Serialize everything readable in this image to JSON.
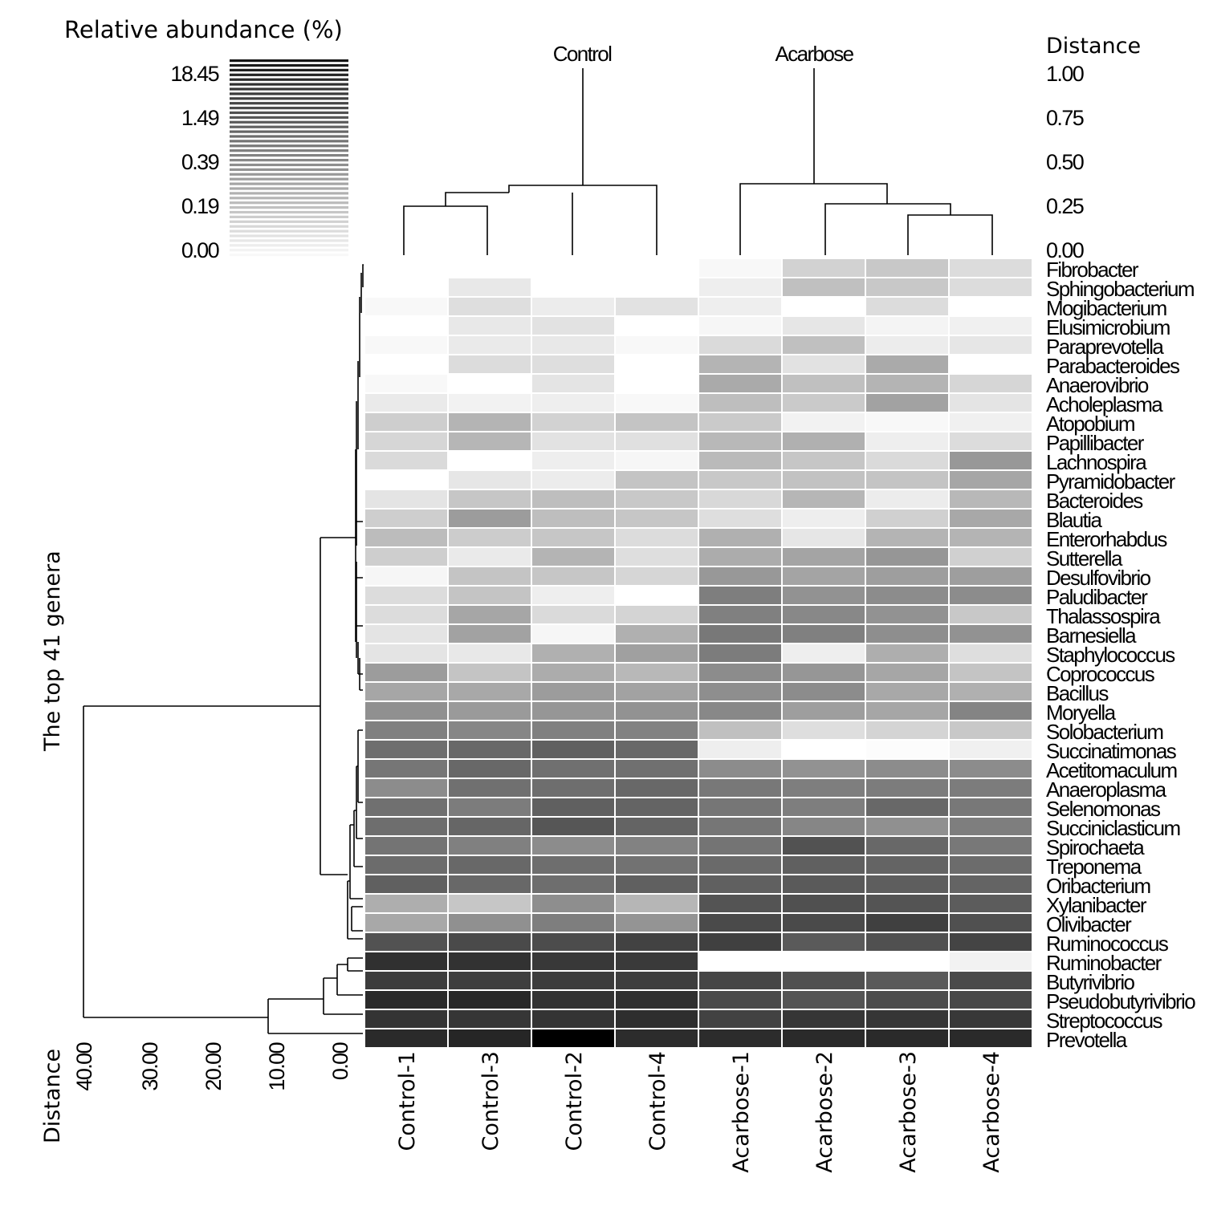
{
  "chart_data": {
    "type": "heatmap",
    "legend_title": "Relative abundance (%)",
    "legend_ticks": [
      "18.45",
      "1.49",
      "0.39",
      "0.19",
      "0.00"
    ],
    "group_labels": [
      "Control",
      "Acarbose"
    ],
    "col_distance_title": "Distance",
    "col_distance_ticks": [
      "1.00",
      "0.75",
      "0.50",
      "0.25",
      "0.00"
    ],
    "row_axis_title": "The top 41 genera",
    "row_distance_title": "Distance",
    "row_distance_ticks": [
      "40.00",
      "30.00",
      "20.00",
      "10.00",
      "0.00"
    ],
    "columns": [
      "Control-1",
      "Control-3",
      "Control-2",
      "Control-4",
      "Acarbose-1",
      "Acarbose-2",
      "Acarbose-3",
      "Acarbose-4"
    ],
    "rows": [
      "Fibrobacter",
      "Sphingobacterium",
      "Mogibacterium",
      "Elusimicrobium",
      "Paraprevotella",
      "Parabacteroides",
      "Anaerovibrio",
      "Acholeplasma",
      "Atopobium",
      "Papillibacter",
      "Lachnospira",
      "Pyramidobacter",
      "Bacteroides",
      "Blautia",
      "Enterorhabdus",
      "Sutterella",
      "Desulfovibrio",
      "Paludibacter",
      "Thalassospira",
      "Barnesiella",
      "Staphylococcus",
      "Coprococcus",
      "Bacillus",
      "Moryella",
      "Solobacterium",
      "Succinatimonas",
      "Acetitomaculum",
      "Anaeroplasma",
      "Selenomonas",
      "Succiniclasticum",
      "Spirochaeta",
      "Treponema",
      "Oribacterium",
      "Xylanibacter",
      "Olivibacter",
      "Ruminococcus",
      "Ruminobacter",
      "Butyrivibrio",
      "Pseudobutyrivibrio",
      "Streptococcus",
      "Prevotella"
    ],
    "gray_levels": [
      [
        255,
        255,
        255,
        255,
        248,
        210,
        200,
        220
      ],
      [
        255,
        232,
        255,
        255,
        238,
        192,
        200,
        220
      ],
      [
        248,
        222,
        236,
        226,
        238,
        255,
        220,
        255
      ],
      [
        255,
        232,
        226,
        255,
        246,
        230,
        244,
        240
      ],
      [
        248,
        234,
        232,
        248,
        218,
        192,
        236,
        230
      ],
      [
        255,
        220,
        222,
        255,
        180,
        226,
        170,
        255
      ],
      [
        248,
        255,
        228,
        255,
        170,
        192,
        180,
        214
      ],
      [
        234,
        242,
        238,
        248,
        190,
        202,
        162,
        228
      ],
      [
        206,
        180,
        210,
        196,
        202,
        242,
        248,
        240
      ],
      [
        214,
        182,
        226,
        224,
        184,
        176,
        238,
        220
      ],
      [
        218,
        255,
        238,
        246,
        186,
        198,
        218,
        152
      ],
      [
        255,
        230,
        236,
        196,
        200,
        194,
        196,
        166
      ],
      [
        228,
        198,
        190,
        200,
        216,
        182,
        236,
        184
      ],
      [
        206,
        156,
        190,
        198,
        222,
        238,
        208,
        168
      ],
      [
        188,
        204,
        198,
        220,
        176,
        230,
        180,
        180
      ],
      [
        206,
        234,
        180,
        222,
        172,
        164,
        150,
        208
      ],
      [
        246,
        196,
        198,
        214,
        152,
        164,
        158,
        158
      ],
      [
        220,
        196,
        238,
        255,
        126,
        146,
        140,
        140
      ],
      [
        220,
        166,
        218,
        212,
        128,
        136,
        146,
        200
      ],
      [
        228,
        162,
        246,
        176,
        120,
        128,
        142,
        146
      ],
      [
        228,
        232,
        176,
        160,
        124,
        238,
        174,
        222
      ],
      [
        156,
        196,
        172,
        184,
        140,
        150,
        166,
        196
      ],
      [
        166,
        168,
        156,
        162,
        142,
        140,
        168,
        176
      ],
      [
        144,
        154,
        150,
        146,
        136,
        158,
        166,
        132
      ],
      [
        128,
        134,
        128,
        130,
        192,
        222,
        212,
        200
      ],
      [
        110,
        104,
        96,
        104,
        238,
        255,
        252,
        240
      ],
      [
        118,
        104,
        112,
        112,
        140,
        146,
        140,
        140
      ],
      [
        140,
        112,
        110,
        104,
        120,
        126,
        124,
        124
      ],
      [
        112,
        124,
        96,
        100,
        118,
        126,
        104,
        120
      ],
      [
        110,
        102,
        86,
        100,
        118,
        134,
        144,
        126
      ],
      [
        116,
        128,
        140,
        130,
        116,
        82,
        104,
        120
      ],
      [
        108,
        104,
        110,
        114,
        106,
        96,
        100,
        108
      ],
      [
        96,
        104,
        110,
        96,
        96,
        90,
        94,
        100
      ],
      [
        174,
        198,
        142,
        182,
        84,
        80,
        84,
        92
      ],
      [
        168,
        144,
        126,
        148,
        74,
        74,
        64,
        80
      ],
      [
        82,
        74,
        76,
        66,
        64,
        90,
        80,
        68
      ],
      [
        48,
        50,
        56,
        58,
        255,
        255,
        255,
        242
      ],
      [
        60,
        62,
        60,
        62,
        70,
        80,
        90,
        74
      ],
      [
        42,
        40,
        50,
        48,
        74,
        84,
        76,
        72
      ],
      [
        52,
        54,
        52,
        46,
        66,
        54,
        54,
        56
      ],
      [
        42,
        38,
        0,
        44,
        44,
        42,
        42,
        42
      ]
    ]
  }
}
